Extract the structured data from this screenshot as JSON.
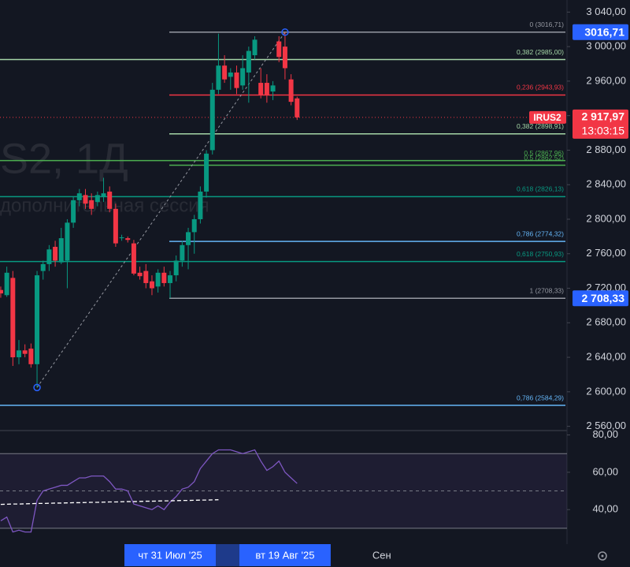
{
  "chart_data": [
    {
      "type": "candlestick",
      "watermark": "S2, 1Д",
      "watermark_sub": "дополнительная сессия",
      "categories": [
        null,
        null,
        null,
        null,
        null,
        null,
        null,
        null,
        null,
        null,
        null,
        null,
        null,
        null,
        null,
        null,
        null,
        null,
        null,
        null,
        null,
        null,
        null,
        null,
        null,
        null,
        null,
        null,
        "чт 31 Июл '25",
        null,
        null,
        null,
        null,
        null,
        null,
        null,
        null,
        null,
        null,
        null,
        null,
        null,
        null,
        null,
        null,
        null,
        null,
        "вт 19 Авг '25",
        null,
        null,
        null,
        null,
        null,
        null,
        null,
        null,
        null,
        null,
        null,
        null,
        null,
        null,
        null,
        "Сен"
      ],
      "open": [
        2718,
        2712,
        2732,
        2640,
        2648,
        2650,
        2632,
        2740,
        2748,
        2768,
        2750,
        2752,
        2796,
        2822,
        2828,
        2822,
        2820,
        2826,
        2832,
        2812,
        2778,
        2778,
        2772,
        2738,
        2740,
        2728,
        2722,
        2738,
        2726,
        2735,
        2752,
        2770,
        2785,
        2800,
        2832,
        2880,
        2950,
        2978,
        2965,
        2970,
        2955,
        2970,
        2990,
        2958,
        2958,
        2948,
        3006,
        3000,
        2962,
        2940,
        null,
        null,
        null,
        null,
        null,
        null,
        null,
        null,
        null,
        null,
        null,
        null,
        null,
        null
      ],
      "high": [
        2722,
        2745,
        2740,
        2660,
        2655,
        2656,
        2740,
        2752,
        2770,
        2775,
        2790,
        2800,
        2826,
        2835,
        2835,
        2830,
        2832,
        2848,
        2838,
        2818,
        2782,
        2780,
        2776,
        2745,
        2748,
        2735,
        2742,
        2745,
        2740,
        2758,
        2775,
        2790,
        2805,
        2838,
        2880,
        2958,
        3015,
        2990,
        2975,
        2978,
        2990,
        3000,
        3012,
        2975,
        2968,
        2960,
        3012,
        3016.71,
        2968,
        2942,
        null,
        null,
        null,
        null,
        null,
        null,
        null,
        null,
        null,
        null,
        null,
        null,
        null,
        null
      ],
      "low": [
        2709,
        2710,
        2630,
        2632,
        2640,
        2628,
        2605,
        2730,
        2740,
        2745,
        2748,
        2720,
        2790,
        2815,
        2812,
        2805,
        2815,
        2820,
        2808,
        2768,
        2775,
        2773,
        2735,
        2730,
        2720,
        2712,
        2715,
        2722,
        2708.33,
        2728,
        2745,
        2742,
        2760,
        2795,
        2825,
        2875,
        2945,
        2958,
        2950,
        2945,
        2950,
        2935,
        2985,
        2940,
        2935,
        2938,
        2982,
        2962,
        2932,
        2915,
        null,
        null,
        null,
        null,
        null,
        null,
        null,
        null,
        null,
        null,
        null,
        null,
        null,
        null
      ],
      "close": [
        2714,
        2738,
        2640,
        2648,
        2644,
        2632,
        2735,
        2748,
        2765,
        2752,
        2778,
        2796,
        2822,
        2830,
        2818,
        2812,
        2828,
        2830,
        2812,
        2772,
        2779,
        2776,
        2737,
        2734,
        2726,
        2720,
        2738,
        2726,
        2735,
        2752,
        2770,
        2785,
        2800,
        2832,
        2876,
        2950,
        2978,
        2962,
        2970,
        2952,
        2975,
        2995,
        3008,
        2944,
        2944,
        2955,
        2988,
        2975,
        2936,
        2917.97,
        null,
        null,
        null,
        null,
        null,
        null,
        null,
        null,
        null,
        null,
        null,
        null,
        null,
        null
      ],
      "up_color": "#089981",
      "down_color": "#f23645",
      "ylim": [
        2556,
        3054
      ],
      "yticks": [
        {
          "value": 2560,
          "label": "2 560,00"
        },
        {
          "value": 2600,
          "label": "2 600,00"
        },
        {
          "value": 2640,
          "label": "2 640,00"
        },
        {
          "value": 2680,
          "label": "2 680,00"
        },
        {
          "value": 2720,
          "label": "2 720,00"
        },
        {
          "value": 2760,
          "label": "2 760,00"
        },
        {
          "value": 2800,
          "label": "2 800,00"
        },
        {
          "value": 2840,
          "label": "2 840,00"
        },
        {
          "value": 2880,
          "label": "2 880,00"
        },
        {
          "value": 2920,
          "label": "2 920,00"
        },
        {
          "value": 2960,
          "label": "2 960,00"
        },
        {
          "value": 3000,
          "label": "3 000,00"
        },
        {
          "value": 3040,
          "label": "3 040,00"
        }
      ],
      "fib_levels": [
        {
          "label": "0 (3016,71)",
          "value": 3016.71,
          "color": "#9598a1"
        },
        {
          "label": "0,382 (2985,00)",
          "value": 2985.0,
          "color": "#a5d6a7"
        },
        {
          "label": "0,236 (2943,93)",
          "value": 2943.93,
          "color": "#f23645"
        },
        {
          "label": "0,382 (2898,91)",
          "value": 2898.91,
          "color": "#a5d6a7"
        },
        {
          "label": "0,5 (2867,96)",
          "value": 2867.96,
          "color": "#4caf50"
        },
        {
          "label": "0,5 (2862,52)",
          "value": 2862.52,
          "color": "#4caf50"
        },
        {
          "label": "0,618 (2826,13)",
          "value": 2826.13,
          "color": "#089981"
        },
        {
          "label": "0,786 (2774,32)",
          "value": 2774.32,
          "color": "#64b5f6"
        },
        {
          "label": "0,618 (2750,93)",
          "value": 2750.93,
          "color": "#089981"
        },
        {
          "label": "1 (2708,33)",
          "value": 2708.33,
          "color": "#9598a1"
        },
        {
          "label": "0,786 (2584,29)",
          "value": 2584.29,
          "color": "#64b5f6"
        }
      ],
      "price_badges": [
        {
          "value": 3016.71,
          "label": "3016,71",
          "color": "#2962ff"
        },
        {
          "value": 2708.33,
          "label": "2 708,33",
          "color": "#2962ff"
        }
      ],
      "last_price": {
        "symbol": "IRUS2",
        "value": 2917.97,
        "label": "2 917,97",
        "countdown": "13:03:15",
        "color": "#f23645"
      }
    },
    {
      "type": "line",
      "series": [
        {
          "color": "#7e57c2",
          "values": [
            34,
            36,
            28,
            29,
            28,
            28,
            45,
            50,
            51,
            52,
            53,
            53,
            55,
            57,
            57,
            58,
            58,
            58,
            55,
            51,
            51,
            50,
            43,
            42,
            41,
            40,
            42,
            40,
            44,
            47,
            51,
            52,
            55,
            62,
            66,
            70,
            72,
            72,
            72,
            71,
            70,
            71,
            72,
            66,
            61,
            63,
            66,
            60,
            57,
            54,
            null,
            null,
            null,
            null,
            null,
            null,
            null,
            null,
            null,
            null,
            null,
            null,
            null,
            null
          ]
        },
        {
          "color": "#ffffff",
          "style": "dashed",
          "values": [
            42.8,
            42.9,
            43,
            43,
            43.1,
            43.2,
            43.3,
            43.3,
            43.4,
            43.5,
            43.5,
            43.6,
            43.7,
            43.7,
            43.8,
            43.9,
            43.9,
            44,
            44.1,
            44.1,
            44.2,
            44.3,
            44.3,
            44.4,
            44.5,
            44.5,
            44.6,
            44.7,
            44.7,
            44.8,
            44.9,
            44.9,
            45,
            45.1,
            45.1,
            45.2,
            45.3,
            null,
            null,
            null,
            null,
            null,
            null,
            null,
            null,
            null,
            null,
            null,
            null,
            null,
            null,
            null,
            null,
            null,
            null,
            null,
            null,
            null,
            null,
            null,
            null,
            null,
            null,
            null
          ]
        }
      ],
      "band": [
        30,
        70
      ],
      "midline": 50,
      "ylim": [
        21.5,
        81.5
      ],
      "yticks": [
        {
          "value": 40,
          "label": "40,00"
        },
        {
          "value": 60,
          "label": "60,00"
        },
        {
          "value": 80,
          "label": "80,00"
        }
      ]
    }
  ]
}
